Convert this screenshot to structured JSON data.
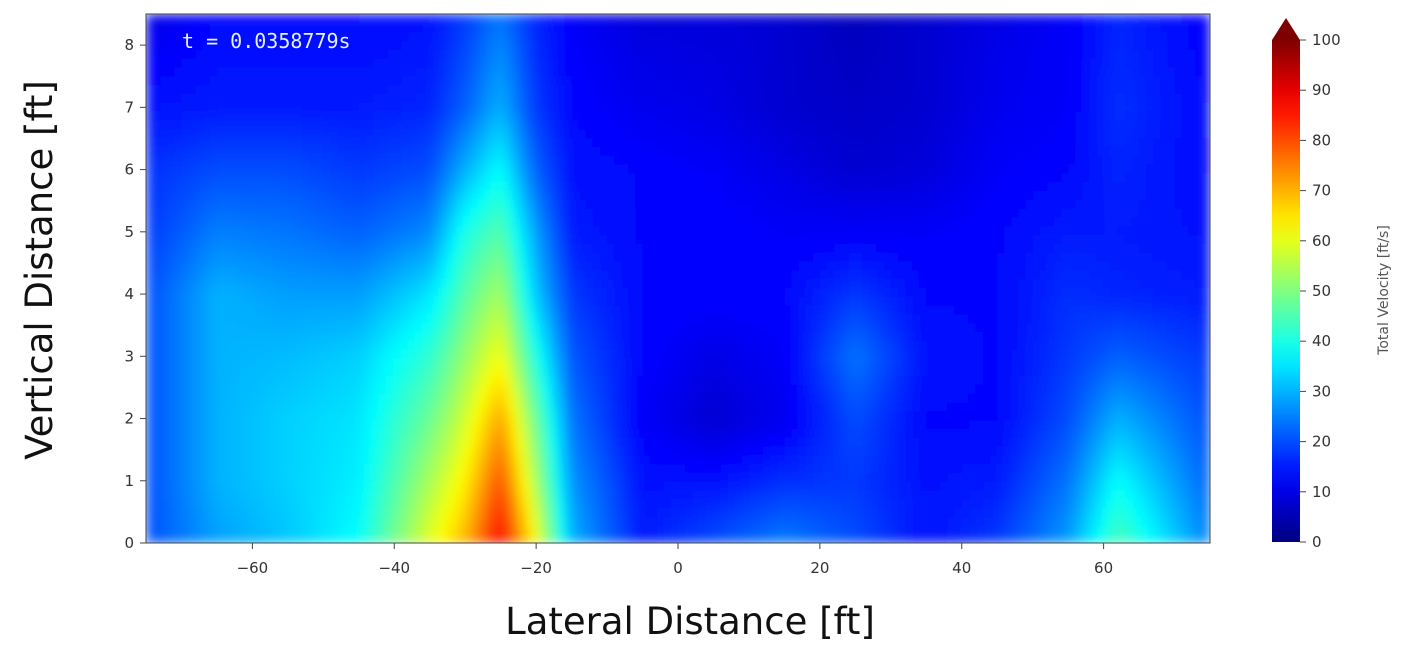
{
  "chart_data": {
    "type": "heatmap",
    "annotation": "t = 0.0358779s",
    "xlabel": "Lateral Distance [ft]",
    "ylabel": "Vertical Distance [ft]",
    "xlim": [
      -75,
      75
    ],
    "ylim": [
      0,
      8.5
    ],
    "xticks": [
      -60,
      -40,
      -20,
      0,
      20,
      40,
      60
    ],
    "yticks": [
      0,
      1,
      2,
      3,
      4,
      5,
      6,
      7,
      8
    ],
    "colorbar": {
      "label": "Total Velocity [ft/s]",
      "colormap": "jet",
      "range": [
        0,
        100
      ],
      "ticks": [
        0,
        10,
        20,
        30,
        40,
        50,
        60,
        70,
        80,
        90,
        100
      ],
      "extend": "max"
    },
    "x": [
      -75,
      -65,
      -55,
      -45,
      -35,
      -30,
      -25,
      -20,
      -15,
      -5,
      5,
      15,
      25,
      35,
      45,
      55,
      62,
      75
    ],
    "y": [
      0,
      1,
      2,
      3,
      4,
      5,
      6,
      7,
      8.5
    ],
    "z": [
      [
        20,
        28,
        32,
        38,
        60,
        70,
        88,
        62,
        30,
        15,
        20,
        25,
        20,
        14,
        18,
        28,
        45,
        25
      ],
      [
        20,
        30,
        33,
        36,
        54,
        64,
        80,
        54,
        27,
        14,
        14,
        17,
        18,
        14,
        15,
        24,
        38,
        22
      ],
      [
        20,
        30,
        33,
        35,
        48,
        58,
        72,
        48,
        24,
        12,
        8,
        11,
        20,
        13,
        13,
        20,
        30,
        20
      ],
      [
        20,
        30,
        31,
        33,
        42,
        52,
        62,
        40,
        21,
        13,
        10,
        12,
        24,
        14,
        13,
        18,
        22,
        18
      ],
      [
        20,
        30,
        28,
        28,
        35,
        46,
        54,
        32,
        18,
        13,
        13,
        13,
        18,
        13,
        13,
        17,
        16,
        15
      ],
      [
        18,
        25,
        24,
        22,
        26,
        40,
        46,
        28,
        15,
        13,
        13,
        12,
        12,
        12,
        13,
        15,
        15,
        14
      ],
      [
        17,
        20,
        20,
        18,
        20,
        30,
        38,
        22,
        14,
        13,
        12,
        10,
        8,
        9,
        12,
        13,
        16,
        13
      ],
      [
        14,
        15,
        15,
        15,
        16,
        22,
        30,
        18,
        13,
        11,
        10,
        8,
        7,
        8,
        11,
        12,
        17,
        13
      ],
      [
        10,
        13,
        13,
        13,
        14,
        18,
        24,
        16,
        12,
        9,
        9,
        8,
        6,
        8,
        10,
        12,
        16,
        12
      ]
    ]
  }
}
